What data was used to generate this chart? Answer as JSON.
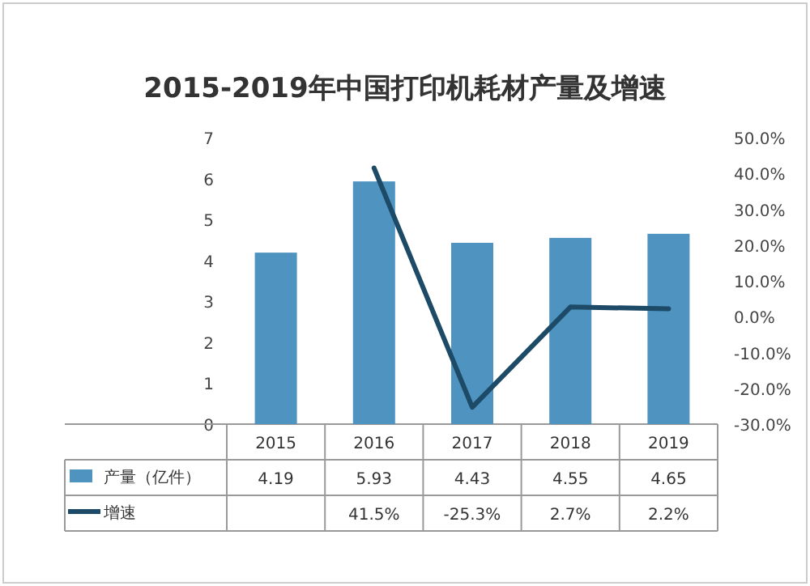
{
  "chart_data": {
    "type": "bar",
    "title": "2015-2019年中国打印机耗材产量及增速",
    "categories": [
      "2015",
      "2016",
      "2017",
      "2018",
      "2019"
    ],
    "series": [
      {
        "name": "产量（亿件）",
        "color": "#4f93c0",
        "values": [
          4.19,
          5.93,
          4.43,
          4.55,
          4.65
        ],
        "value_labels": [
          "4.19",
          "5.93",
          "4.43",
          "4.55",
          "4.65"
        ]
      },
      {
        "name": "增速",
        "type": "line",
        "axis": "y2",
        "color": "#1d4a66",
        "values": [
          null,
          41.5,
          -25.3,
          2.7,
          2.2
        ],
        "value_labels": [
          null,
          "41.5%",
          "-25.3%",
          "2.7%",
          "2.2%"
        ]
      }
    ],
    "ylim": [
      0,
      7
    ],
    "yticks": [
      0,
      1,
      2,
      3,
      4,
      5,
      6,
      7
    ],
    "y2lim": [
      -30,
      50
    ],
    "y2ticks": [
      {
        "value": 50,
        "label": "50.0%"
      },
      {
        "value": 40,
        "label": "40.0%"
      },
      {
        "value": 30,
        "label": "30.0%"
      },
      {
        "value": 20,
        "label": "20.0%"
      },
      {
        "value": 10,
        "label": "10.0%"
      },
      {
        "value": 0,
        "label": "0.0%"
      },
      {
        "value": -10,
        "label": "-10.0%"
      },
      {
        "value": -20,
        "label": "-20.0%"
      },
      {
        "value": -30,
        "label": "-30.0%"
      }
    ],
    "grid": false,
    "legend": "bottom",
    "marker": "none",
    "line_style": "solid"
  }
}
